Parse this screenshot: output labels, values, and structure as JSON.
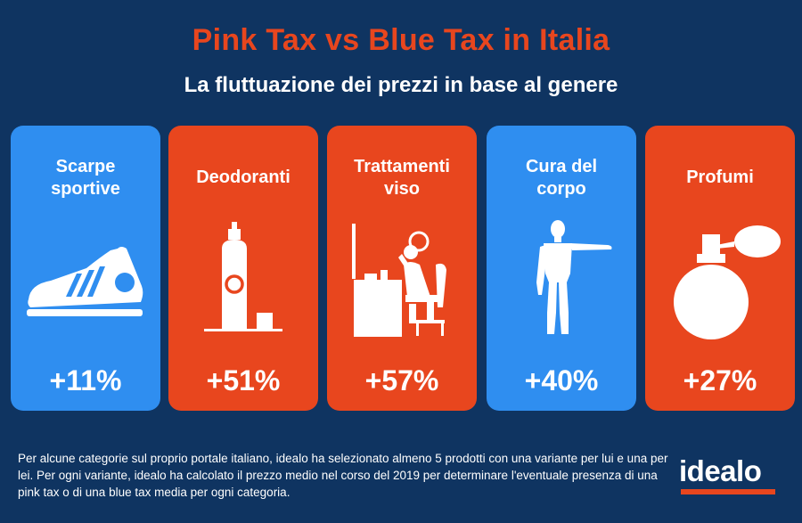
{
  "header": {
    "title": "Pink Tax vs Blue Tax in Italia",
    "subtitle": "La fluttuazione dei prezzi in base al genere"
  },
  "colors": {
    "background": "#0f3461",
    "blue_tax": "#2f8ef0",
    "pink_tax": "#e8461e",
    "title": "#e8461e"
  },
  "categories": [
    {
      "label": "Scarpe sportive",
      "value": "+11%",
      "tax": "blue",
      "icon": "sneaker-icon"
    },
    {
      "label": "Deodoranti",
      "value": "+51%",
      "tax": "pink",
      "icon": "deodorant-spray-icon"
    },
    {
      "label": "Trattamenti viso",
      "value": "+57%",
      "tax": "pink",
      "icon": "woman-at-vanity-icon"
    },
    {
      "label": "Cura del corpo",
      "value": "+40%",
      "tax": "blue",
      "icon": "human-body-icon"
    },
    {
      "label": "Profumi",
      "value": "+27%",
      "tax": "pink",
      "icon": "perfume-bottle-icon"
    }
  ],
  "footnote": "Per alcune categorie sul proprio portale italiano, idealo ha selezionato almeno 5 prodotti con una variante per lui e una per lei. Per ogni variante, idealo ha calcolato il prezzo medio nel corso del 2019 per determinare l'eventuale presenza di una pink tax o di una blue tax media per ogni categoria.",
  "logo": "idealo"
}
